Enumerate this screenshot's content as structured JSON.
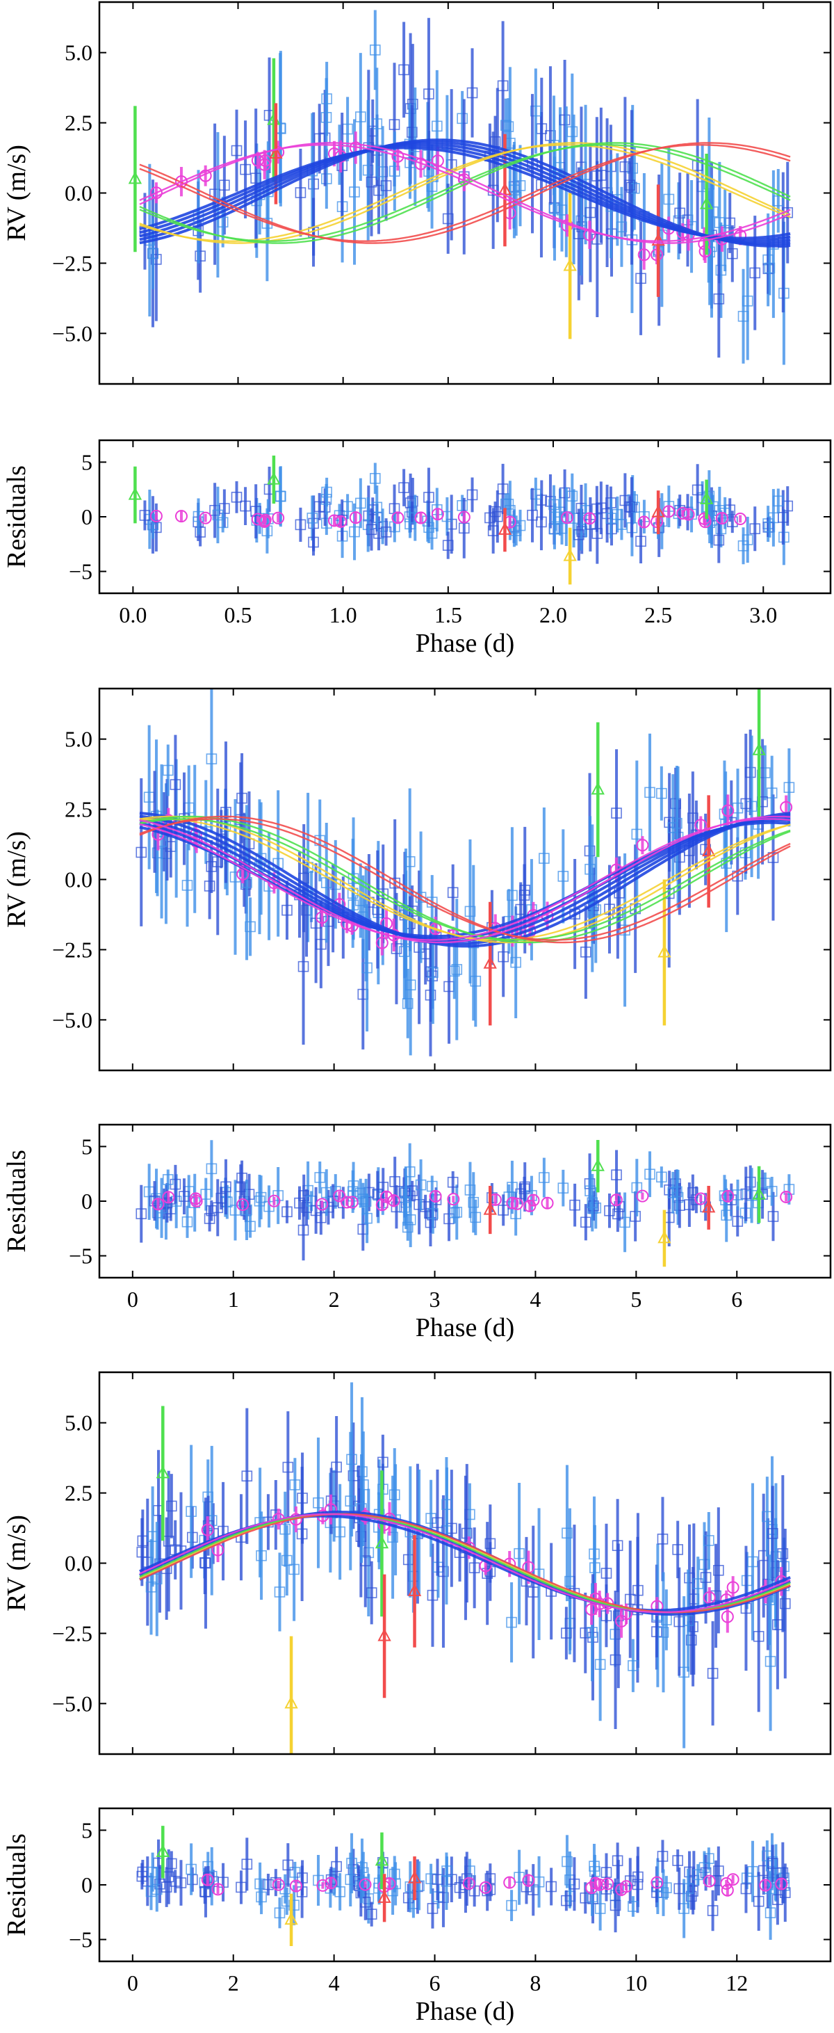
{
  "chart_data": [
    {
      "type": "scatter",
      "panel": "rv",
      "xlabel": "",
      "ylabel": "RV (m/s)",
      "xlim": [
        -0.16,
        3.32
      ],
      "ylim": [
        -6.8,
        6.8
      ],
      "xticks": [
        0.0,
        0.5,
        1.0,
        1.5,
        2.0,
        2.5,
        3.0
      ],
      "xticklabels_shown": false,
      "yticks": [
        -5.0,
        -2.5,
        0.0,
        2.5,
        5.0
      ],
      "yticklabels": [
        "−5.0",
        "−2.5",
        "0.0",
        "2.5",
        "5.0"
      ],
      "period": 3.2,
      "amplitude": 1.75,
      "grid": false,
      "legend": "none",
      "colors": {
        "data_dark": "#2f52d6",
        "data_light": "#3d8fe8",
        "circles": "#ea3fd8",
        "triangles_red": "#f24c4c",
        "triangles_green": "#4fe04f",
        "triangles_yellow": "#f5d232"
      },
      "models": [
        {
          "color": "#1f46e0",
          "phase0": 0.18,
          "amplitude": 1.75,
          "bundle": 5
        },
        {
          "color": "#f5d232",
          "phase0": 0.4,
          "amplitude": 1.75,
          "bundle": 2
        },
        {
          "color": "#4fe04f",
          "phase0": 0.46,
          "amplitude": 1.75,
          "bundle": 2
        },
        {
          "color": "#f24c4c",
          "phase0": 0.6,
          "amplitude": 1.75,
          "bundle": 2
        },
        {
          "color": "#ea3fd8",
          "phase0": 0.04,
          "amplitude": 1.75,
          "bundle": 2
        }
      ],
      "highlights": [
        {
          "marker": "triangle",
          "color": "#4fe04f",
          "x": 0.01,
          "y": 0.5,
          "err": 2.6
        },
        {
          "marker": "triangle",
          "color": "#4fe04f",
          "x": 0.67,
          "y": 2.6,
          "err": 2.2
        },
        {
          "marker": "triangle",
          "color": "#f24c4c",
          "x": 0.68,
          "y": 1.4,
          "err": 1.8
        },
        {
          "marker": "triangle",
          "color": "#f24c4c",
          "x": 1.77,
          "y": 0.1,
          "err": 2.0
        },
        {
          "marker": "triangle",
          "color": "#f5d232",
          "x": 2.08,
          "y": -2.6,
          "err": 2.6
        },
        {
          "marker": "triangle",
          "color": "#f24c4c",
          "x": 2.5,
          "y": -1.7,
          "err": 2.0
        },
        {
          "marker": "triangle",
          "color": "#4fe04f",
          "x": 2.73,
          "y": -0.4,
          "err": 1.8
        }
      ]
    },
    {
      "type": "scatter",
      "panel": "residuals",
      "xlabel": "Phase (d)",
      "ylabel": "Residuals",
      "xlim": [
        -0.16,
        3.32
      ],
      "ylim": [
        -7,
        7
      ],
      "xticks": [
        0.0,
        0.5,
        1.0,
        1.5,
        2.0,
        2.5,
        3.0
      ],
      "xticklabels": [
        "0.0",
        "0.5",
        "1.0",
        "1.5",
        "2.0",
        "2.5",
        "3.0"
      ],
      "yticks": [
        -5,
        0,
        5
      ],
      "yticklabels": [
        "−5",
        "0",
        "5"
      ],
      "period": 3.2,
      "grid": false,
      "legend": "none",
      "highlights": [
        {
          "marker": "triangle",
          "color": "#4fe04f",
          "x": 0.01,
          "y": 2.0,
          "err": 2.6
        },
        {
          "marker": "triangle",
          "color": "#4fe04f",
          "x": 0.67,
          "y": 3.4,
          "err": 2.2
        },
        {
          "marker": "triangle",
          "color": "#f24c4c",
          "x": 1.77,
          "y": -1.2,
          "err": 2.0
        },
        {
          "marker": "triangle",
          "color": "#f5d232",
          "x": 2.08,
          "y": -3.6,
          "err": 2.6
        },
        {
          "marker": "triangle",
          "color": "#f24c4c",
          "x": 2.5,
          "y": 0.4,
          "err": 2.0
        },
        {
          "marker": "triangle",
          "color": "#4fe04f",
          "x": 2.73,
          "y": 1.6,
          "err": 1.8
        }
      ]
    },
    {
      "type": "scatter",
      "panel": "rv",
      "xlabel": "",
      "ylabel": "RV (m/s)",
      "xlim": [
        -0.33,
        6.93
      ],
      "ylim": [
        -6.8,
        6.8
      ],
      "xticks": [
        0,
        1,
        2,
        3,
        4,
        5,
        6
      ],
      "xticklabels_shown": false,
      "yticks": [
        -5.0,
        -2.5,
        0.0,
        2.5,
        5.0
      ],
      "yticklabels": [
        "−5.0",
        "−2.5",
        "0.0",
        "2.5",
        "5.0"
      ],
      "period": 6.7,
      "amplitude": 2.2,
      "grid": false,
      "legend": "none",
      "models": [
        {
          "color": "#1f46e0",
          "phase0": 0.72,
          "amplitude": 2.2,
          "bundle": 5
        },
        {
          "color": "#f5d232",
          "phase0": 0.8,
          "amplitude": 2.2,
          "bundle": 2
        },
        {
          "color": "#4fe04f",
          "phase0": 0.83,
          "amplitude": 2.2,
          "bundle": 2
        },
        {
          "color": "#f24c4c",
          "phase0": 0.88,
          "amplitude": 2.2,
          "bundle": 2
        },
        {
          "color": "#ea3fd8",
          "phase0": 0.7,
          "amplitude": 2.2,
          "bundle": 2
        }
      ],
      "highlights": [
        {
          "marker": "triangle",
          "color": "#f24c4c",
          "x": 3.55,
          "y": -3.0,
          "err": 2.2
        },
        {
          "marker": "triangle",
          "color": "#4fe04f",
          "x": 4.62,
          "y": 3.2,
          "err": 2.4
        },
        {
          "marker": "triangle",
          "color": "#f5d232",
          "x": 5.28,
          "y": -2.6,
          "err": 2.6
        },
        {
          "marker": "triangle",
          "color": "#f24c4c",
          "x": 5.72,
          "y": 1.0,
          "err": 2.0
        },
        {
          "marker": "triangle",
          "color": "#4fe04f",
          "x": 6.22,
          "y": 4.6,
          "err": 2.6
        }
      ]
    },
    {
      "type": "scatter",
      "panel": "residuals",
      "xlabel": "Phase (d)",
      "ylabel": "Residuals",
      "xlim": [
        -0.33,
        6.93
      ],
      "ylim": [
        -7,
        7
      ],
      "xticks": [
        0,
        1,
        2,
        3,
        4,
        5,
        6
      ],
      "xticklabels": [
        "0",
        "1",
        "2",
        "3",
        "4",
        "5",
        "6"
      ],
      "yticks": [
        -5,
        0,
        5
      ],
      "yticklabels": [
        "−5",
        "0",
        "5"
      ],
      "period": 6.7,
      "grid": false,
      "legend": "none",
      "highlights": [
        {
          "marker": "triangle",
          "color": "#f24c4c",
          "x": 3.55,
          "y": -0.8,
          "err": 2.2
        },
        {
          "marker": "triangle",
          "color": "#4fe04f",
          "x": 4.62,
          "y": 3.2,
          "err": 2.4
        },
        {
          "marker": "triangle",
          "color": "#f5d232",
          "x": 5.28,
          "y": -3.4,
          "err": 2.6
        },
        {
          "marker": "triangle",
          "color": "#f24c4c",
          "x": 5.72,
          "y": -0.6,
          "err": 2.0
        },
        {
          "marker": "triangle",
          "color": "#4fe04f",
          "x": 6.22,
          "y": 0.6,
          "err": 2.6
        }
      ]
    },
    {
      "type": "scatter",
      "panel": "rv",
      "xlabel": "",
      "ylabel": "RV (m/s)",
      "xlim": [
        -0.66,
        13.86
      ],
      "ylim": [
        -6.8,
        6.8
      ],
      "xticks": [
        0,
        2,
        4,
        6,
        8,
        10,
        12
      ],
      "xticklabels_shown": false,
      "yticks": [
        -5.0,
        -2.5,
        0.0,
        2.5,
        5.0
      ],
      "yticklabels": [
        "−5.0",
        "−2.5",
        "0.0",
        "2.5",
        "5.0"
      ],
      "period": 13.2,
      "amplitude": 1.75,
      "grid": false,
      "legend": "none",
      "models": [
        {
          "color": "#1f46e0",
          "phase0": 0.05,
          "amplitude": 1.75,
          "bundle": 3
        },
        {
          "color": "#f5d232",
          "phase0": 0.06,
          "amplitude": 1.75,
          "bundle": 1
        },
        {
          "color": "#4fe04f",
          "phase0": 0.055,
          "amplitude": 1.75,
          "bundle": 1
        },
        {
          "color": "#f24c4c",
          "phase0": 0.065,
          "amplitude": 1.75,
          "bundle": 1
        },
        {
          "color": "#ea3fd8",
          "phase0": 0.045,
          "amplitude": 1.75,
          "bundle": 1
        }
      ],
      "highlights": [
        {
          "marker": "triangle",
          "color": "#4fe04f",
          "x": 0.6,
          "y": 3.2,
          "err": 2.4
        },
        {
          "marker": "triangle",
          "color": "#f5d232",
          "x": 3.15,
          "y": -5.0,
          "err": 2.4
        },
        {
          "marker": "triangle",
          "color": "#4fe04f",
          "x": 4.95,
          "y": 0.7,
          "err": 2.6
        },
        {
          "marker": "triangle",
          "color": "#f24c4c",
          "x": 5.0,
          "y": -2.6,
          "err": 2.2
        },
        {
          "marker": "triangle",
          "color": "#f24c4c",
          "x": 5.6,
          "y": -1.0,
          "err": 2.0
        }
      ]
    },
    {
      "type": "scatter",
      "panel": "residuals",
      "xlabel": "Phase (d)",
      "ylabel": "Residuals",
      "xlim": [
        -0.66,
        13.86
      ],
      "ylim": [
        -7,
        7
      ],
      "xticks": [
        0,
        2,
        4,
        6,
        8,
        10,
        12
      ],
      "xticklabels": [
        "0",
        "2",
        "4",
        "6",
        "8",
        "10",
        "12"
      ],
      "yticks": [
        -5,
        0,
        5
      ],
      "yticklabels": [
        "−5",
        "0",
        "5"
      ],
      "period": 13.2,
      "grid": false,
      "legend": "none",
      "highlights": [
        {
          "marker": "triangle",
          "color": "#4fe04f",
          "x": 0.6,
          "y": 3.0,
          "err": 2.4
        },
        {
          "marker": "triangle",
          "color": "#f5d232",
          "x": 3.15,
          "y": -3.2,
          "err": 2.4
        },
        {
          "marker": "triangle",
          "color": "#4fe04f",
          "x": 4.95,
          "y": 2.2,
          "err": 2.6
        },
        {
          "marker": "triangle",
          "color": "#f24c4c",
          "x": 5.0,
          "y": -1.2,
          "err": 2.2
        },
        {
          "marker": "triangle",
          "color": "#f24c4c",
          "x": 5.6,
          "y": 0.6,
          "err": 2.0
        }
      ]
    }
  ]
}
